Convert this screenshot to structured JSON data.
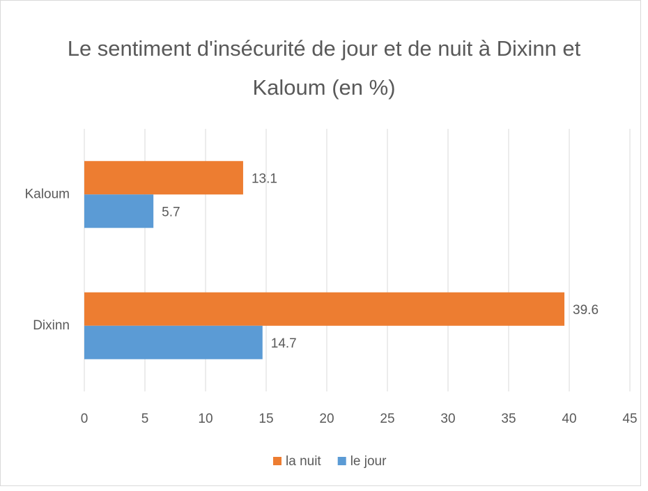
{
  "chart_data": {
    "type": "barh",
    "title": "Le sentiment d'insécurité de jour et de nuit à Dixinn et Kaloum (en %)",
    "categories": [
      "Dixinn",
      "Kaloum"
    ],
    "series": [
      {
        "name": "la nuit",
        "color": "#ed7d31",
        "values": [
          39.6,
          13.1
        ]
      },
      {
        "name": "le jour",
        "color": "#5b9bd5",
        "values": [
          14.7,
          5.7
        ]
      }
    ],
    "xlim": [
      0,
      45
    ],
    "xticks": [
      0,
      5,
      10,
      15,
      20,
      25,
      30,
      35,
      40,
      45
    ],
    "grid": true,
    "legend": "bottom"
  }
}
